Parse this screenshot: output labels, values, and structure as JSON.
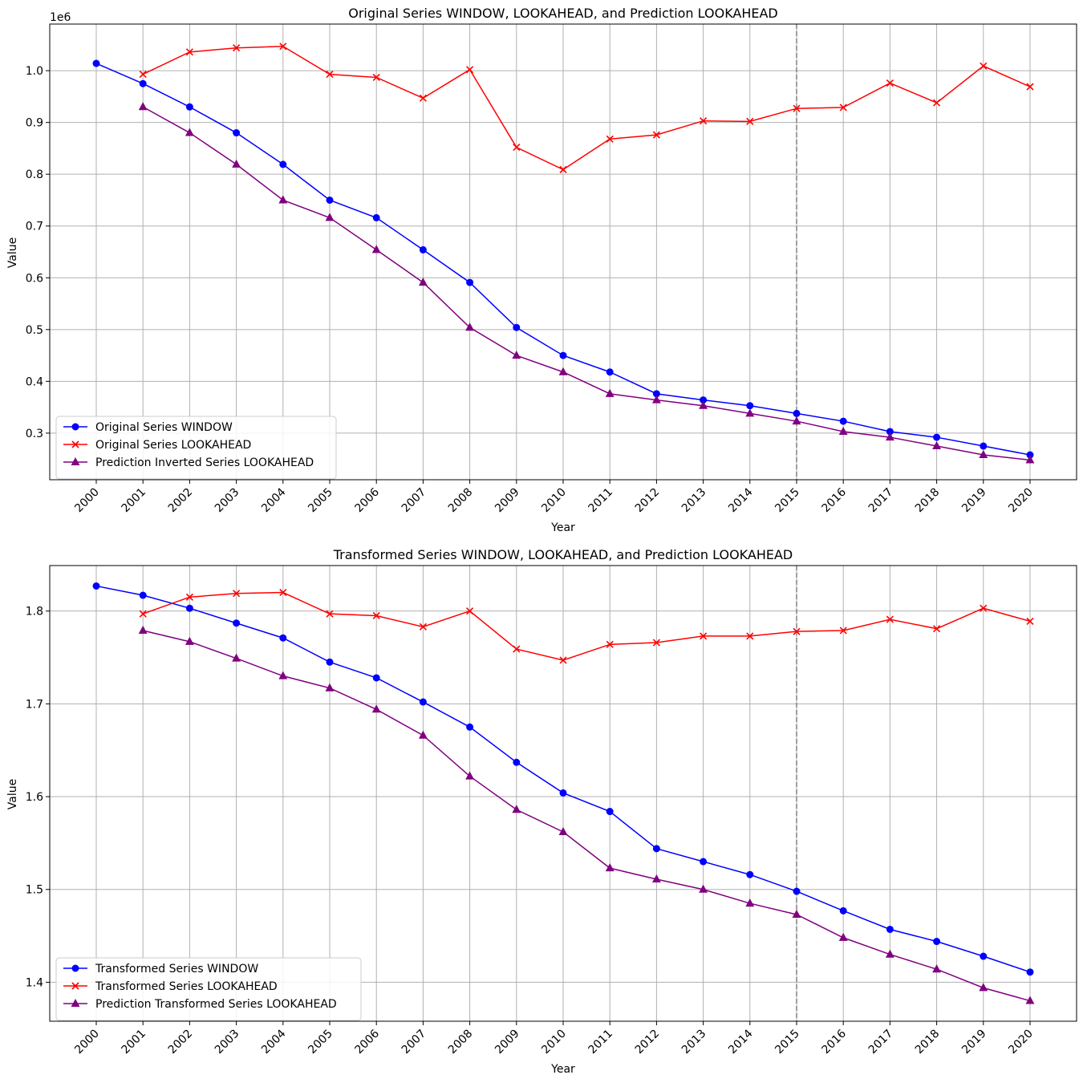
{
  "chart_data": [
    {
      "type": "line",
      "title": "Original Series WINDOW, LOOKAHEAD, and Prediction LOOKAHEAD",
      "xlabel": "Year",
      "ylabel": "Value",
      "offset_label": "1e6",
      "ylim": [
        0.21,
        1.09
      ],
      "yticks": [
        0.3,
        0.4,
        0.5,
        0.6,
        0.7,
        0.8,
        0.9,
        1.0
      ],
      "ytick_labels": [
        "0.3",
        "0.4",
        "0.5",
        "0.6",
        "0.7",
        "0.8",
        "0.9",
        "1.0"
      ],
      "categories": [
        "2000",
        "2001",
        "2002",
        "2003",
        "2004",
        "2005",
        "2006",
        "2007",
        "2008",
        "2009",
        "2010",
        "2011",
        "2012",
        "2013",
        "2014",
        "2015",
        "2016",
        "2017",
        "2018",
        "2019",
        "2020"
      ],
      "vline_year": "2015",
      "grid": true,
      "legend_position": "lower-left",
      "series": [
        {
          "name": "Original Series WINDOW",
          "color": "#0000ff",
          "marker": "circle",
          "values": [
            1.014,
            0.975,
            0.93,
            0.88,
            0.819,
            0.75,
            0.716,
            0.654,
            0.591,
            0.504,
            0.45,
            0.418,
            0.376,
            0.364,
            0.353,
            0.338,
            0.323,
            0.303,
            0.292,
            0.275,
            0.258
          ]
        },
        {
          "name": "Original Series LOOKAHEAD",
          "color": "#ff0000",
          "marker": "x",
          "values": [
            null,
            0.993,
            1.036,
            1.044,
            1.047,
            0.993,
            0.987,
            0.947,
            1.002,
            0.852,
            0.809,
            0.868,
            0.876,
            0.903,
            0.902,
            0.927,
            0.929,
            0.976,
            0.938,
            1.009,
            0.969
          ]
        },
        {
          "name": "Prediction Inverted Series LOOKAHEAD",
          "color": "#800080",
          "marker": "triangle",
          "values": [
            null,
            0.93,
            0.88,
            0.819,
            0.75,
            0.716,
            0.654,
            0.591,
            0.504,
            0.45,
            0.418,
            0.376,
            0.364,
            0.353,
            0.338,
            0.323,
            0.303,
            0.292,
            0.275,
            0.258,
            0.248
          ]
        }
      ]
    },
    {
      "type": "line",
      "title": "Transformed Series WINDOW, LOOKAHEAD, and Prediction LOOKAHEAD",
      "xlabel": "Year",
      "ylabel": "Value",
      "offset_label": "",
      "ylim": [
        1.358,
        1.849
      ],
      "yticks": [
        1.4,
        1.5,
        1.6,
        1.7,
        1.8
      ],
      "ytick_labels": [
        "1.4",
        "1.5",
        "1.6",
        "1.7",
        "1.8"
      ],
      "categories": [
        "2000",
        "2001",
        "2002",
        "2003",
        "2004",
        "2005",
        "2006",
        "2007",
        "2008",
        "2009",
        "2010",
        "2011",
        "2012",
        "2013",
        "2014",
        "2015",
        "2016",
        "2017",
        "2018",
        "2019",
        "2020"
      ],
      "vline_year": "2015",
      "grid": true,
      "legend_position": "lower-left",
      "series": [
        {
          "name": "Transformed Series WINDOW",
          "color": "#0000ff",
          "marker": "circle",
          "values": [
            1.827,
            1.817,
            1.803,
            1.787,
            1.771,
            1.745,
            1.728,
            1.702,
            1.675,
            1.637,
            1.604,
            1.584,
            1.544,
            1.53,
            1.516,
            1.498,
            1.477,
            1.457,
            1.444,
            1.428,
            1.411
          ]
        },
        {
          "name": "Transformed Series LOOKAHEAD",
          "color": "#ff0000",
          "marker": "x",
          "values": [
            null,
            1.797,
            1.815,
            1.819,
            1.82,
            1.797,
            1.795,
            1.783,
            1.8,
            1.759,
            1.747,
            1.764,
            1.766,
            1.773,
            1.773,
            1.778,
            1.779,
            1.791,
            1.781,
            1.803,
            1.789
          ]
        },
        {
          "name": "Prediction Transformed Series LOOKAHEAD",
          "color": "#800080",
          "marker": "triangle",
          "values": [
            null,
            1.779,
            1.767,
            1.749,
            1.73,
            1.717,
            1.694,
            1.666,
            1.622,
            1.586,
            1.562,
            1.523,
            1.511,
            1.5,
            1.485,
            1.473,
            1.448,
            1.43,
            1.414,
            1.394,
            1.38
          ]
        }
      ]
    }
  ]
}
